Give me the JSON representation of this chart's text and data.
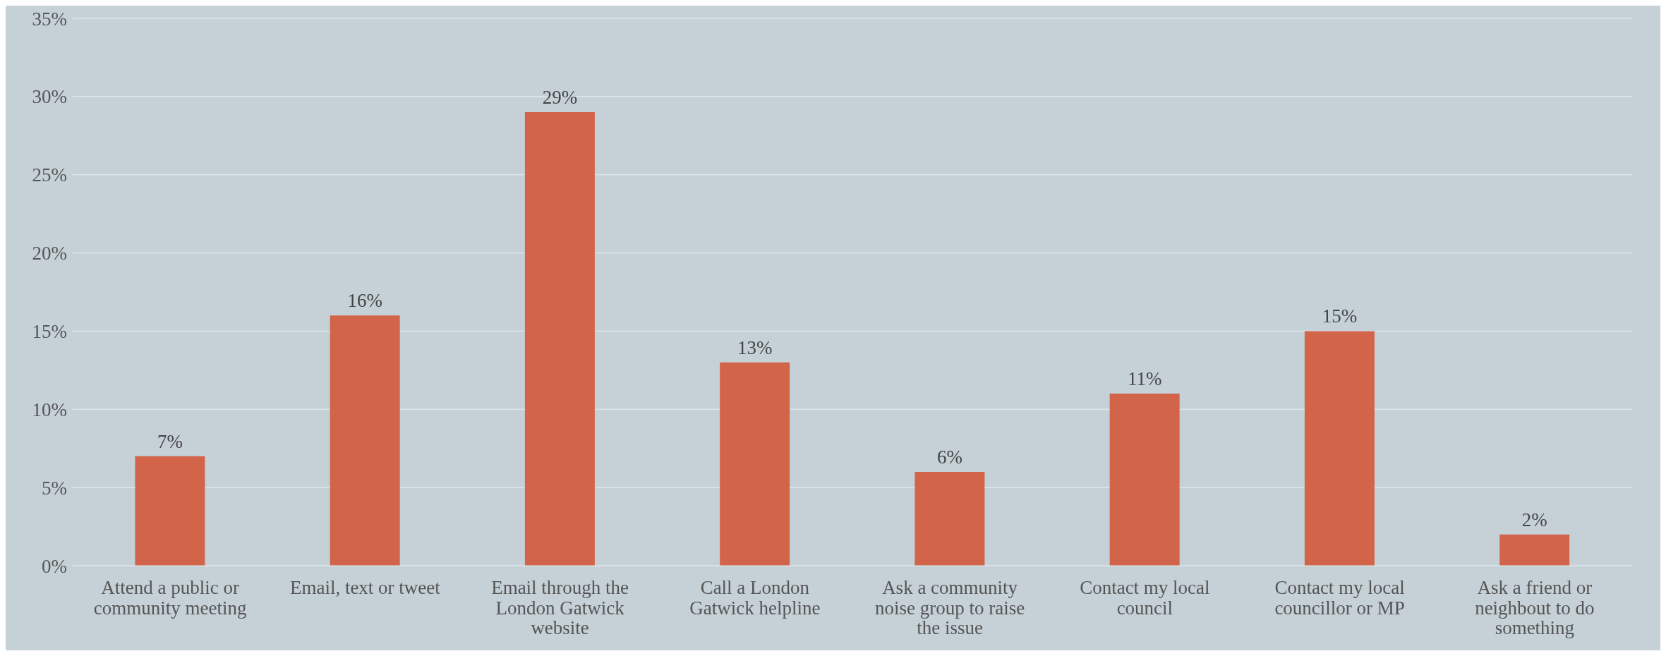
{
  "chart_data": {
    "type": "bar",
    "categories": [
      "Attend a public or community meeting",
      "Email, text or tweet",
      "Email through the London Gatwick website",
      "Call a London Gatwick helpline",
      "Ask a community noise group to raise the issue",
      "Contact my local council",
      "Contact my local councillor or MP",
      "Ask a friend or neighbout to do something"
    ],
    "values": [
      7,
      16,
      29,
      13,
      6,
      11,
      15,
      2
    ],
    "value_labels": [
      "7%",
      "16%",
      "29%",
      "13%",
      "6%",
      "11%",
      "15%",
      "2%"
    ],
    "color": "#d2644a",
    "ylim": [
      0,
      35
    ],
    "yticks": [
      {
        "value": 0,
        "label": "0%"
      },
      {
        "value": 5,
        "label": "5%"
      },
      {
        "value": 10,
        "label": "10%"
      },
      {
        "value": 15,
        "label": "15%"
      },
      {
        "value": 20,
        "label": "20%"
      },
      {
        "value": 25,
        "label": "25%"
      },
      {
        "value": 30,
        "label": "30%"
      },
      {
        "value": 35,
        "label": "35%"
      }
    ],
    "grid": "y",
    "legend": false
  }
}
